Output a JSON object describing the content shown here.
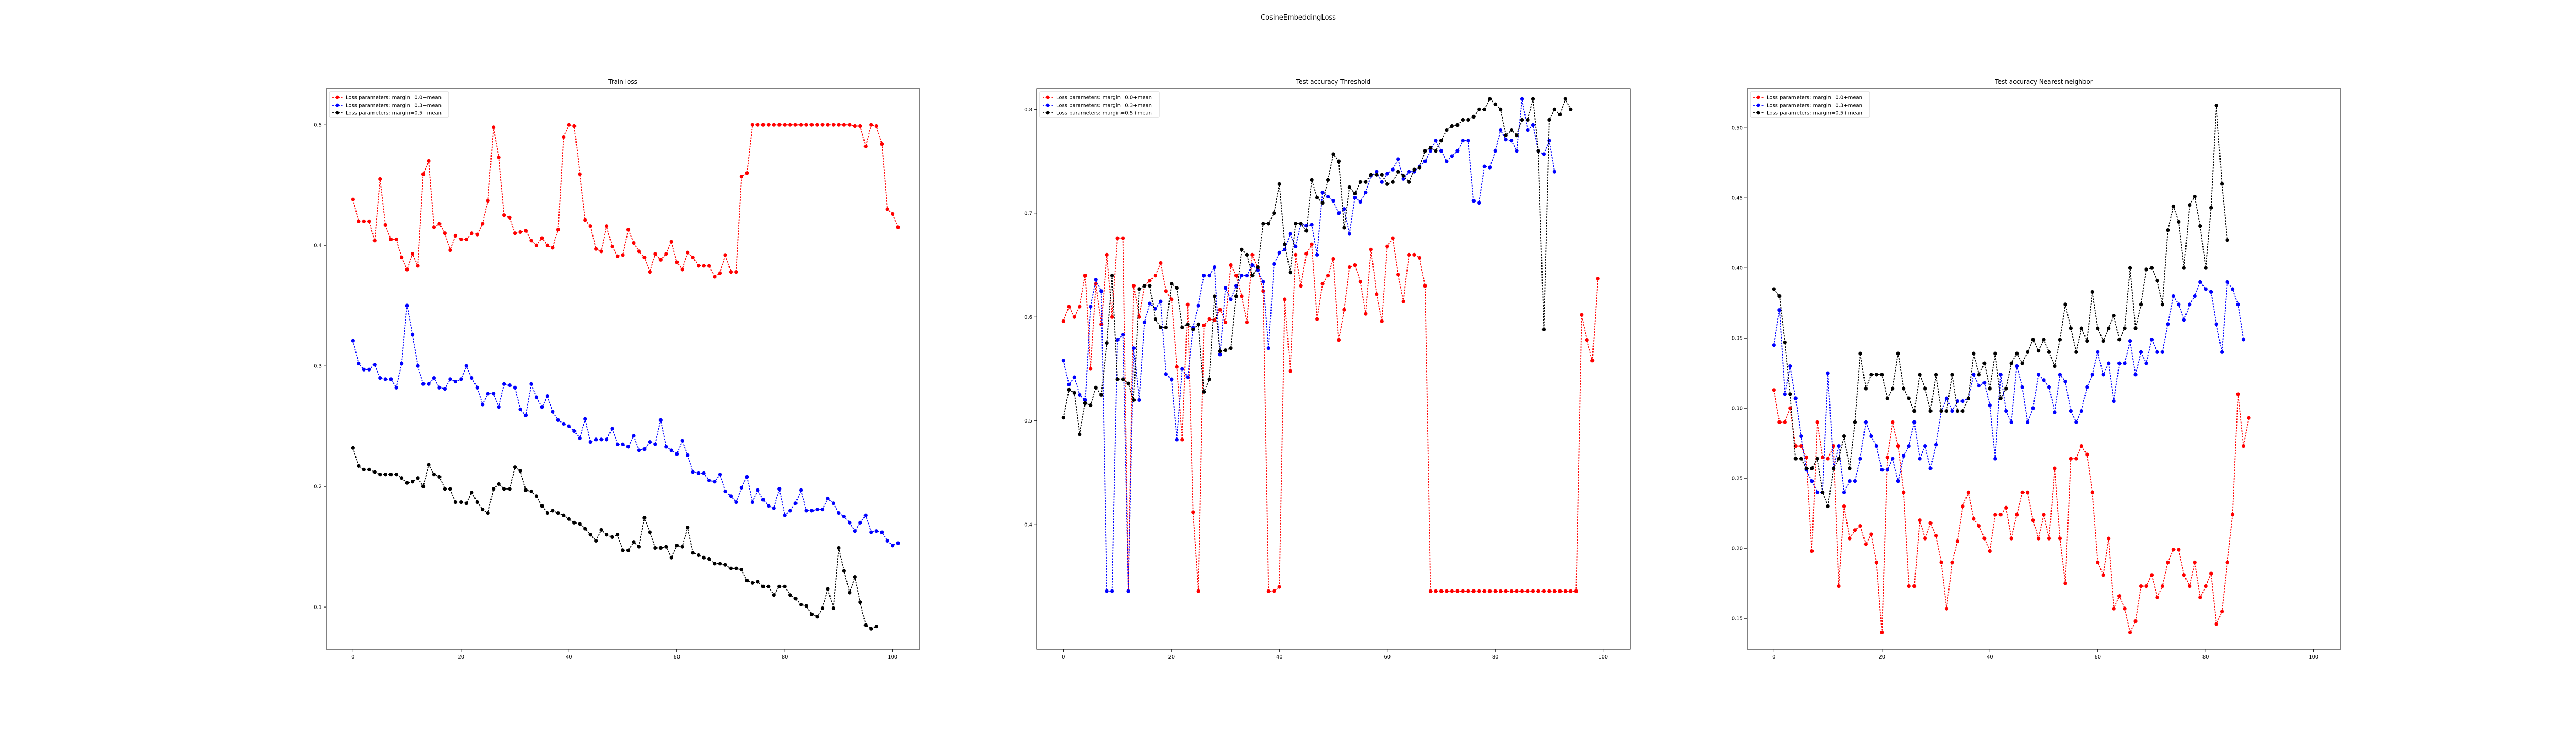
{
  "suptitle": "CosineEmbeddingLoss",
  "chart_data": [
    {
      "type": "line",
      "title": "Train loss",
      "xlabel": "",
      "ylabel": "",
      "xlim": [
        -5,
        105
      ],
      "ylim": [
        0.065,
        0.53
      ],
      "xticks": [
        0,
        20,
        40,
        60,
        80,
        100
      ],
      "yticks": [
        0.1,
        0.2,
        0.3,
        0.4,
        0.5
      ],
      "ytick_labels": [
        "0.1",
        "0.2",
        "0.3",
        "0.4",
        "0.5"
      ],
      "grid": false,
      "legend_position": "upper left",
      "series": [
        {
          "name": "Loss parameters: margin=0.0+mean",
          "color": "#ff0000",
          "values": [
            0.438,
            0.42,
            0.42,
            0.42,
            0.404,
            0.455,
            0.417,
            0.405,
            0.405,
            0.39,
            0.38,
            0.393,
            0.383,
            0.459,
            0.47,
            0.415,
            0.418,
            0.41,
            0.396,
            0.408,
            0.405,
            0.405,
            0.41,
            0.409,
            0.418,
            0.437,
            0.498,
            0.473,
            0.425,
            0.423,
            0.41,
            0.411,
            0.412,
            0.404,
            0.4,
            0.406,
            0.4,
            0.398,
            0.413,
            0.49,
            0.5,
            0.499,
            0.459,
            0.421,
            0.416,
            0.397,
            0.395,
            0.416,
            0.399,
            0.391,
            0.392,
            0.413,
            0.402,
            0.395,
            0.39,
            0.378,
            0.393,
            0.388,
            0.393,
            0.403,
            0.386,
            0.38,
            0.394,
            0.39,
            0.383,
            0.383,
            0.383,
            0.374,
            0.377,
            0.392,
            0.378,
            0.378,
            0.457,
            0.46,
            0.5,
            0.5,
            0.5,
            0.5,
            0.5,
            0.5,
            0.5,
            0.5,
            0.5,
            0.5,
            0.5,
            0.5,
            0.5,
            0.5,
            0.5,
            0.5,
            0.5,
            0.5,
            0.5,
            0.499,
            0.499,
            0.482,
            0.5,
            0.499,
            0.484,
            0.43,
            0.426,
            0.415
          ]
        },
        {
          "name": "Loss parameters: margin=0.3+mean",
          "color": "#0000ff",
          "values": [
            0.321,
            0.302,
            0.297,
            0.297,
            0.301,
            0.29,
            0.289,
            0.289,
            0.282,
            0.302,
            0.35,
            0.326,
            0.3,
            0.285,
            0.285,
            0.29,
            0.282,
            0.281,
            0.289,
            0.287,
            0.289,
            0.3,
            0.29,
            0.282,
            0.268,
            0.277,
            0.277,
            0.266,
            0.285,
            0.284,
            0.282,
            0.264,
            0.259,
            0.285,
            0.274,
            0.266,
            0.275,
            0.262,
            0.255,
            0.252,
            0.25,
            0.246,
            0.24,
            0.256,
            0.237,
            0.239,
            0.239,
            0.239,
            0.248,
            0.235,
            0.235,
            0.233,
            0.242,
            0.23,
            0.231,
            0.237,
            0.235,
            0.255,
            0.233,
            0.23,
            0.227,
            0.238,
            0.226,
            0.212,
            0.211,
            0.211,
            0.205,
            0.204,
            0.21,
            0.196,
            0.192,
            0.187,
            0.199,
            0.208,
            0.187,
            0.197,
            0.189,
            0.184,
            0.182,
            0.198,
            0.176,
            0.18,
            0.186,
            0.197,
            0.18,
            0.18,
            0.181,
            0.181,
            0.19,
            0.186,
            0.178,
            0.175,
            0.17,
            0.163,
            0.17,
            0.176,
            0.162,
            0.163,
            0.162,
            0.155,
            0.151,
            0.153
          ]
        },
        {
          "name": "Loss parameters: margin=0.5+mean",
          "color": "#000000",
          "values": [
            0.232,
            0.217,
            0.214,
            0.214,
            0.212,
            0.21,
            0.21,
            0.21,
            0.21,
            0.207,
            0.203,
            0.204,
            0.207,
            0.2,
            0.218,
            0.21,
            0.208,
            0.198,
            0.198,
            0.187,
            0.187,
            0.186,
            0.195,
            0.187,
            0.181,
            0.178,
            0.198,
            0.202,
            0.198,
            0.198,
            0.216,
            0.213,
            0.197,
            0.196,
            0.192,
            0.184,
            0.178,
            0.18,
            0.178,
            0.176,
            0.173,
            0.17,
            0.169,
            0.165,
            0.16,
            0.155,
            0.164,
            0.16,
            0.158,
            0.16,
            0.147,
            0.147,
            0.154,
            0.15,
            0.174,
            0.162,
            0.149,
            0.149,
            0.15,
            0.141,
            0.151,
            0.15,
            0.166,
            0.145,
            0.143,
            0.141,
            0.14,
            0.136,
            0.136,
            0.135,
            0.132,
            0.132,
            0.131,
            0.122,
            0.12,
            0.121,
            0.117,
            0.117,
            0.11,
            0.117,
            0.117,
            0.11,
            0.107,
            0.102,
            0.101,
            0.094,
            0.092,
            0.099,
            0.115,
            0.099,
            0.149,
            0.13,
            0.112,
            0.125,
            0.104,
            0.085,
            0.082,
            0.084
          ]
        }
      ]
    },
    {
      "type": "line",
      "title": "Test accuracy Threshold",
      "xlabel": "",
      "ylabel": "",
      "xlim": [
        -5,
        105
      ],
      "ylim": [
        0.28,
        0.82
      ],
      "xticks": [
        0,
        20,
        40,
        60,
        80,
        100
      ],
      "yticks": [
        0.4,
        0.5,
        0.6,
        0.7,
        0.8
      ],
      "ytick_labels": [
        "0.4",
        "0.5",
        "0.6",
        "0.7",
        "0.8"
      ],
      "grid": false,
      "legend_position": "upper left",
      "series": [
        {
          "name": "Loss parameters: margin=0.0+mean",
          "color": "#ff0000",
          "values": [
            0.596,
            0.61,
            0.6,
            0.61,
            0.64,
            0.55,
            0.632,
            0.593,
            0.66,
            0.6,
            0.676,
            0.676,
            0.336,
            0.63,
            0.6,
            0.63,
            0.635,
            0.64,
            0.652,
            0.625,
            0.617,
            0.552,
            0.482,
            0.612,
            0.412,
            0.336,
            0.592,
            0.598,
            0.597,
            0.607,
            0.595,
            0.65,
            0.64,
            0.62,
            0.595,
            0.66,
            0.646,
            0.625,
            0.336,
            0.336,
            0.34,
            0.617,
            0.548,
            0.66,
            0.63,
            0.661,
            0.67,
            0.598,
            0.632,
            0.64,
            0.656,
            0.578,
            0.607,
            0.648,
            0.65,
            0.634,
            0.603,
            0.665,
            0.622,
            0.596,
            0.668,
            0.676,
            0.641,
            0.615,
            0.66,
            0.66,
            0.657,
            0.63,
            0.336,
            0.336,
            0.336,
            0.336,
            0.336,
            0.336,
            0.336,
            0.336,
            0.336,
            0.336,
            0.336,
            0.336,
            0.336,
            0.336,
            0.336,
            0.336,
            0.336,
            0.336,
            0.336,
            0.336,
            0.336,
            0.336,
            0.336,
            0.336,
            0.336,
            0.336,
            0.336,
            0.336,
            0.602,
            0.578,
            0.558,
            0.637
          ]
        },
        {
          "name": "Loss parameters: margin=0.3+mean",
          "color": "#0000ff",
          "values": [
            0.558,
            0.535,
            0.542,
            0.525,
            0.52,
            0.61,
            0.636,
            0.625,
            0.336,
            0.336,
            0.578,
            0.583,
            0.336,
            0.57,
            0.52,
            0.595,
            0.613,
            0.608,
            0.615,
            0.545,
            0.54,
            0.482,
            0.55,
            0.542,
            0.59,
            0.611,
            0.64,
            0.64,
            0.648,
            0.564,
            0.628,
            0.617,
            0.63,
            0.64,
            0.64,
            0.65,
            0.645,
            0.634,
            0.57,
            0.651,
            0.662,
            0.665,
            0.68,
            0.668,
            0.69,
            0.688,
            0.689,
            0.66,
            0.72,
            0.716,
            0.712,
            0.7,
            0.704,
            0.68,
            0.715,
            0.711,
            0.72,
            0.736,
            0.74,
            0.73,
            0.738,
            0.742,
            0.752,
            0.733,
            0.74,
            0.74,
            0.745,
            0.75,
            0.76,
            0.77,
            0.76,
            0.75,
            0.755,
            0.76,
            0.77,
            0.77,
            0.712,
            0.71,
            0.745,
            0.744,
            0.76,
            0.78,
            0.771,
            0.77,
            0.76,
            0.81,
            0.78,
            0.785,
            0.76,
            0.757,
            0.77,
            0.74
          ]
        },
        {
          "name": "Loss parameters: margin=0.5+mean",
          "color": "#000000",
          "values": [
            0.503,
            0.53,
            0.527,
            0.487,
            0.517,
            0.515,
            0.532,
            0.525,
            0.575,
            0.64,
            0.54,
            0.54,
            0.536,
            0.52,
            0.627,
            0.63,
            0.63,
            0.598,
            0.59,
            0.59,
            0.632,
            0.628,
            0.59,
            0.593,
            0.588,
            0.593,
            0.528,
            0.54,
            0.62,
            0.567,
            0.568,
            0.57,
            0.62,
            0.665,
            0.66,
            0.64,
            0.648,
            0.69,
            0.69,
            0.7,
            0.728,
            0.67,
            0.643,
            0.69,
            0.69,
            0.683,
            0.732,
            0.715,
            0.71,
            0.732,
            0.757,
            0.75,
            0.686,
            0.725,
            0.719,
            0.73,
            0.73,
            0.737,
            0.737,
            0.737,
            0.728,
            0.73,
            0.74,
            0.736,
            0.73,
            0.742,
            0.744,
            0.76,
            0.763,
            0.76,
            0.77,
            0.78,
            0.784,
            0.785,
            0.79,
            0.79,
            0.793,
            0.8,
            0.8,
            0.81,
            0.805,
            0.8,
            0.775,
            0.78,
            0.775,
            0.79,
            0.79,
            0.81,
            0.76,
            0.588,
            0.79,
            0.8,
            0.795,
            0.81,
            0.8
          ]
        }
      ]
    },
    {
      "type": "line",
      "title": "Test accuracy Nearest neighbor",
      "xlabel": "",
      "ylabel": "",
      "xlim": [
        -5,
        105
      ],
      "ylim": [
        0.128,
        0.528
      ],
      "xticks": [
        0,
        20,
        40,
        60,
        80,
        100
      ],
      "yticks": [
        0.15,
        0.2,
        0.25,
        0.3,
        0.35,
        0.4,
        0.45,
        0.5
      ],
      "ytick_labels": [
        "0.15",
        "0.20",
        "0.25",
        "0.30",
        "0.35",
        "0.40",
        "0.45",
        "0.50"
      ],
      "grid": false,
      "legend_position": "upper left",
      "series": [
        {
          "name": "Loss parameters: margin=0.0+mean",
          "color": "#ff0000",
          "values": [
            0.313,
            0.29,
            0.29,
            0.3,
            0.273,
            0.273,
            0.265,
            0.198,
            0.29,
            0.265,
            0.264,
            0.273,
            0.173,
            0.23,
            0.207,
            0.213,
            0.216,
            0.203,
            0.21,
            0.19,
            0.14,
            0.265,
            0.29,
            0.273,
            0.24,
            0.173,
            0.173,
            0.22,
            0.207,
            0.218,
            0.209,
            0.19,
            0.157,
            0.19,
            0.205,
            0.23,
            0.24,
            0.221,
            0.216,
            0.207,
            0.198,
            0.224,
            0.224,
            0.229,
            0.207,
            0.224,
            0.24,
            0.24,
            0.22,
            0.207,
            0.224,
            0.207,
            0.257,
            0.207,
            0.175,
            0.264,
            0.264,
            0.273,
            0.267,
            0.24,
            0.19,
            0.181,
            0.207,
            0.157,
            0.166,
            0.157,
            0.14,
            0.148,
            0.173,
            0.173,
            0.181,
            0.165,
            0.173,
            0.19,
            0.199,
            0.199,
            0.181,
            0.173,
            0.19,
            0.165,
            0.173,
            0.182,
            0.146,
            0.155,
            0.19,
            0.224,
            0.31,
            0.273,
            0.293
          ]
        },
        {
          "name": "Loss parameters: margin=0.3+mean",
          "color": "#0000ff",
          "values": [
            0.345,
            0.37,
            0.31,
            0.33,
            0.307,
            0.28,
            0.256,
            0.248,
            0.24,
            0.24,
            0.325,
            0.257,
            0.273,
            0.24,
            0.248,
            0.248,
            0.264,
            0.29,
            0.28,
            0.273,
            0.256,
            0.256,
            0.264,
            0.248,
            0.266,
            0.273,
            0.29,
            0.264,
            0.273,
            0.257,
            0.274,
            0.298,
            0.307,
            0.298,
            0.305,
            0.305,
            0.307,
            0.324,
            0.316,
            0.318,
            0.302,
            0.264,
            0.324,
            0.298,
            0.29,
            0.33,
            0.315,
            0.29,
            0.3,
            0.324,
            0.32,
            0.315,
            0.297,
            0.324,
            0.319,
            0.298,
            0.29,
            0.298,
            0.315,
            0.324,
            0.34,
            0.324,
            0.332,
            0.305,
            0.332,
            0.332,
            0.348,
            0.324,
            0.34,
            0.332,
            0.349,
            0.34,
            0.34,
            0.36,
            0.38,
            0.374,
            0.363,
            0.374,
            0.38,
            0.39,
            0.385,
            0.383,
            0.36,
            0.34,
            0.39,
            0.385,
            0.374,
            0.349
          ]
        },
        {
          "name": "Loss parameters: margin=0.5+mean",
          "color": "#000000",
          "values": [
            0.385,
            0.38,
            0.347,
            0.31,
            0.264,
            0.264,
            0.257,
            0.257,
            0.264,
            0.24,
            0.23,
            0.257,
            0.264,
            0.28,
            0.257,
            0.29,
            0.339,
            0.314,
            0.324,
            0.324,
            0.324,
            0.307,
            0.314,
            0.339,
            0.314,
            0.307,
            0.298,
            0.324,
            0.314,
            0.298,
            0.324,
            0.298,
            0.298,
            0.324,
            0.298,
            0.298,
            0.307,
            0.339,
            0.324,
            0.332,
            0.314,
            0.339,
            0.307,
            0.314,
            0.332,
            0.339,
            0.332,
            0.34,
            0.349,
            0.341,
            0.349,
            0.34,
            0.33,
            0.349,
            0.374,
            0.357,
            0.34,
            0.357,
            0.348,
            0.383,
            0.357,
            0.348,
            0.357,
            0.366,
            0.349,
            0.357,
            0.4,
            0.357,
            0.374,
            0.399,
            0.4,
            0.391,
            0.374,
            0.427,
            0.444,
            0.433,
            0.4,
            0.445,
            0.451,
            0.43,
            0.4,
            0.443,
            0.516,
            0.46,
            0.42
          ]
        }
      ]
    }
  ]
}
